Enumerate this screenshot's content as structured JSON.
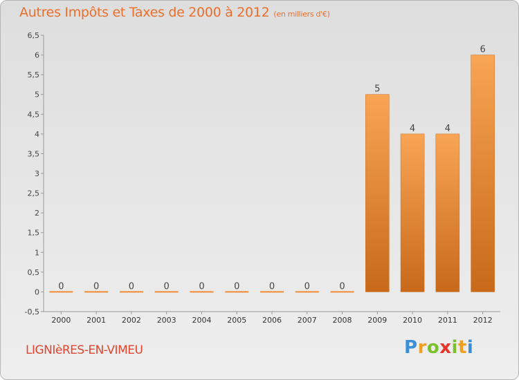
{
  "title": "Autres Impôts et Taxes de 2000 à 2012",
  "subtitle": "(en milliers d'€)",
  "place": "LIGNIèRES-EN-VIMEU",
  "brand": {
    "letters": [
      "P",
      "r",
      "o",
      "x",
      "i",
      "t",
      "i"
    ],
    "colors": [
      "#3a8fd8",
      "#f0a020",
      "#7bbf2a",
      "#e8342a",
      "#7bbf2a",
      "#f0a020",
      "#3a8fd8"
    ]
  },
  "colors": {
    "bar": "#f08a30",
    "bar_edge": "#c86a1a",
    "title": "#ea6f2b",
    "place": "#e2452d"
  },
  "chart_data": {
    "type": "bar",
    "title": "Autres Impôts et Taxes de 2000 à 2012",
    "subtitle": "(en milliers d'€)",
    "xlabel": "",
    "ylabel": "",
    "categories": [
      "2000",
      "2001",
      "2002",
      "2003",
      "2004",
      "2005",
      "2006",
      "2007",
      "2008",
      "2009",
      "2010",
      "2011",
      "2012"
    ],
    "values": [
      0,
      0,
      0,
      0,
      0,
      0,
      0,
      0,
      0,
      5,
      4,
      4,
      6
    ],
    "value_labels": [
      "0",
      "0",
      "0",
      "0",
      "0",
      "0",
      "0",
      "0",
      "0",
      "5",
      "4",
      "4",
      "6"
    ],
    "ylim": [
      -0.5,
      6.5
    ],
    "yticks": [
      "-0,5",
      "0",
      "0,5",
      "1",
      "1,5",
      "2",
      "2,5",
      "3",
      "3,5",
      "4",
      "4,5",
      "5",
      "5,5",
      "6",
      "6,5"
    ],
    "ytick_values": [
      -0.5,
      0,
      0.5,
      1,
      1.5,
      2,
      2.5,
      3,
      3.5,
      4,
      4.5,
      5,
      5.5,
      6,
      6.5
    ],
    "grid": false,
    "legend": "none"
  }
}
